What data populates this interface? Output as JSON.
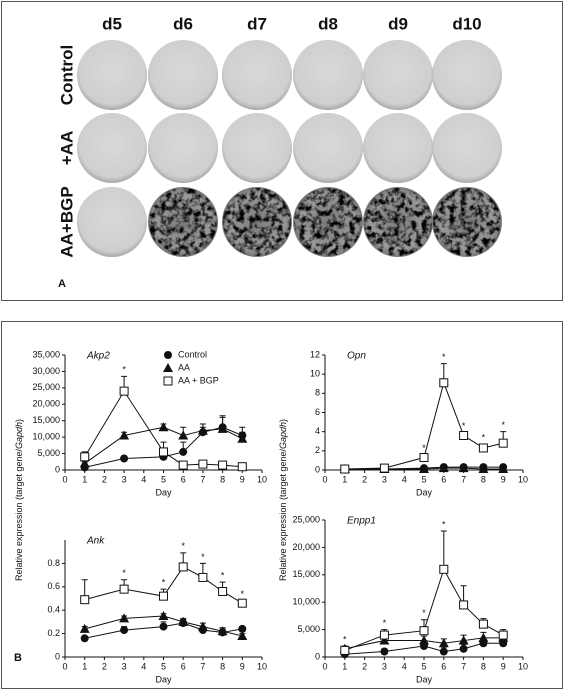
{
  "panel_a": {
    "label": "A",
    "columns": [
      "d5",
      "d6",
      "d7",
      "d8",
      "d9",
      "d10"
    ],
    "rows": [
      "Control",
      "+AA",
      "AA+BGP"
    ]
  },
  "panel_b": {
    "label": "B",
    "significance_label": "*",
    "ylabel": "Relative expression (target gene/",
    "ylabel_italic": "Gapdh",
    "ylabel_end": ")"
  },
  "chart_data": [
    {
      "type": "line",
      "title": "Akp2",
      "xlabel": "Day",
      "x": [
        1,
        3,
        5,
        6,
        7,
        8,
        9
      ],
      "xlim": [
        0,
        10
      ],
      "xticks": [
        0,
        1,
        2,
        3,
        4,
        5,
        6,
        7,
        8,
        9,
        10
      ],
      "ylim": [
        0,
        35000
      ],
      "yticks": [
        0,
        {
          "value": 5000,
          "label": "5,000"
        },
        {
          "value": 10000,
          "label": "10,000"
        },
        {
          "value": 15000,
          "label": "15,000"
        },
        {
          "value": 20000,
          "label": "20,000"
        },
        {
          "value": 25000,
          "label": "25,000"
        },
        {
          "value": 30000,
          "label": "30,000"
        },
        {
          "value": 35000,
          "label": "35,000"
        }
      ],
      "legend": true,
      "series": [
        {
          "name": "Control",
          "marker": "circle",
          "color": "#111111",
          "values": [
            800,
            3500,
            4000,
            5500,
            11500,
            13000,
            10500
          ],
          "errors": [
            500,
            500,
            1000,
            3000,
            1500,
            3000,
            2500
          ]
        },
        {
          "name": "AA",
          "marker": "triangle",
          "color": "#111111",
          "values": [
            2000,
            10500,
            13000,
            10500,
            12000,
            12500,
            9500
          ],
          "errors": [
            500,
            1000,
            1000,
            2500,
            2000,
            4000,
            2000
          ]
        },
        {
          "name": "AA + BGP",
          "marker": "square",
          "color": "#111111",
          "values": [
            4000,
            24000,
            5500,
            1500,
            1800,
            1500,
            1000
          ],
          "errors": [
            1500,
            4500,
            3000,
            1000,
            500,
            500,
            500
          ]
        }
      ],
      "significant_days": [
        3
      ]
    },
    {
      "type": "line",
      "title": "Opn",
      "xlabel": "Day",
      "x": [
        1,
        3,
        5,
        6,
        7,
        8,
        9
      ],
      "xlim": [
        0,
        10
      ],
      "xticks": [
        0,
        1,
        2,
        3,
        4,
        5,
        6,
        7,
        8,
        9,
        10
      ],
      "ylim": [
        0,
        12
      ],
      "yticks": [
        0,
        2,
        4,
        6,
        8,
        10,
        12
      ],
      "series": [
        {
          "marker": "circle",
          "color": "#111111",
          "values": [
            0.1,
            0.1,
            0.2,
            0.3,
            0.3,
            0.3,
            0.3
          ],
          "errors": [
            0.05,
            0.05,
            0.1,
            0.1,
            0.1,
            0.1,
            0.1
          ]
        },
        {
          "marker": "triangle",
          "color": "#111111",
          "values": [
            0.1,
            0.1,
            0.1,
            0.2,
            0.2,
            0.1,
            0.1
          ],
          "errors": [
            0.05,
            0.05,
            0.05,
            0.1,
            0.1,
            0.05,
            0.05
          ]
        },
        {
          "marker": "square",
          "color": "#111111",
          "values": [
            0.1,
            0.2,
            1.3,
            9.1,
            3.6,
            2.3,
            2.8
          ],
          "errors": [
            0.1,
            0.1,
            0.3,
            2,
            0.3,
            0.4,
            1.2
          ]
        }
      ],
      "significant_days": [
        5,
        6,
        7,
        8,
        9
      ]
    },
    {
      "type": "line",
      "title": "Ank",
      "xlabel": "Day",
      "x": [
        1,
        3,
        5,
        6,
        7,
        8,
        9
      ],
      "xlim": [
        0,
        10
      ],
      "xticks": [
        0,
        1,
        2,
        3,
        4,
        5,
        6,
        7,
        8,
        9,
        10
      ],
      "ylim": [
        0,
        1
      ],
      "yticks": [
        0,
        0.2,
        0.4,
        0.6,
        0.8
      ],
      "series": [
        {
          "marker": "circle",
          "color": "#111111",
          "values": [
            0.16,
            0.23,
            0.26,
            0.29,
            0.23,
            0.21,
            0.24
          ],
          "errors": [
            0.01,
            0.03,
            0.04,
            0.03,
            0.03,
            0.03,
            0.02
          ]
        },
        {
          "marker": "triangle",
          "color": "#111111",
          "values": [
            0.24,
            0.33,
            0.35,
            0.3,
            0.26,
            0.22,
            0.18
          ],
          "errors": [
            0.02,
            0.02,
            0.02,
            0.03,
            0.03,
            0.03,
            0.02
          ]
        },
        {
          "marker": "square",
          "color": "#111111",
          "values": [
            0.49,
            0.58,
            0.52,
            0.77,
            0.68,
            0.56,
            0.46
          ],
          "errors": [
            0.17,
            0.08,
            0.06,
            0.12,
            0.12,
            0.08,
            0.02
          ]
        }
      ],
      "significant_days": [
        3,
        5,
        6,
        7,
        8,
        9
      ]
    },
    {
      "type": "line",
      "title": "Enpp1",
      "xlabel": "Day",
      "x": [
        1,
        3,
        5,
        6,
        7,
        8,
        9
      ],
      "xlim": [
        0,
        10
      ],
      "xticks": [
        0,
        1,
        2,
        3,
        4,
        5,
        6,
        7,
        8,
        9,
        10
      ],
      "ylim": [
        0,
        25000
      ],
      "yticks": [
        0,
        {
          "value": 5000,
          "label": "5,000"
        },
        {
          "value": 10000,
          "label": "10,000"
        },
        {
          "value": 15000,
          "label": "15,000"
        },
        {
          "value": 20000,
          "label": "20,000"
        },
        {
          "value": 25000,
          "label": "25,000"
        }
      ],
      "series": [
        {
          "marker": "circle",
          "color": "#111111",
          "values": [
            500,
            1000,
            2000,
            1000,
            1500,
            2500,
            2500
          ],
          "errors": [
            300,
            500,
            800,
            800,
            800,
            800,
            800
          ]
        },
        {
          "marker": "triangle",
          "color": "#111111",
          "values": [
            1500,
            3000,
            3000,
            2500,
            3000,
            3500,
            3500
          ],
          "errors": [
            500,
            800,
            800,
            800,
            1000,
            1000,
            800
          ]
        },
        {
          "marker": "square",
          "color": "#111111",
          "values": [
            1200,
            4000,
            4800,
            16000,
            9500,
            6000,
            4000
          ],
          "errors": [
            500,
            1000,
            2000,
            7000,
            3500,
            1000,
            1000
          ]
        }
      ],
      "significant_days": [
        1,
        3,
        5,
        6
      ]
    }
  ]
}
